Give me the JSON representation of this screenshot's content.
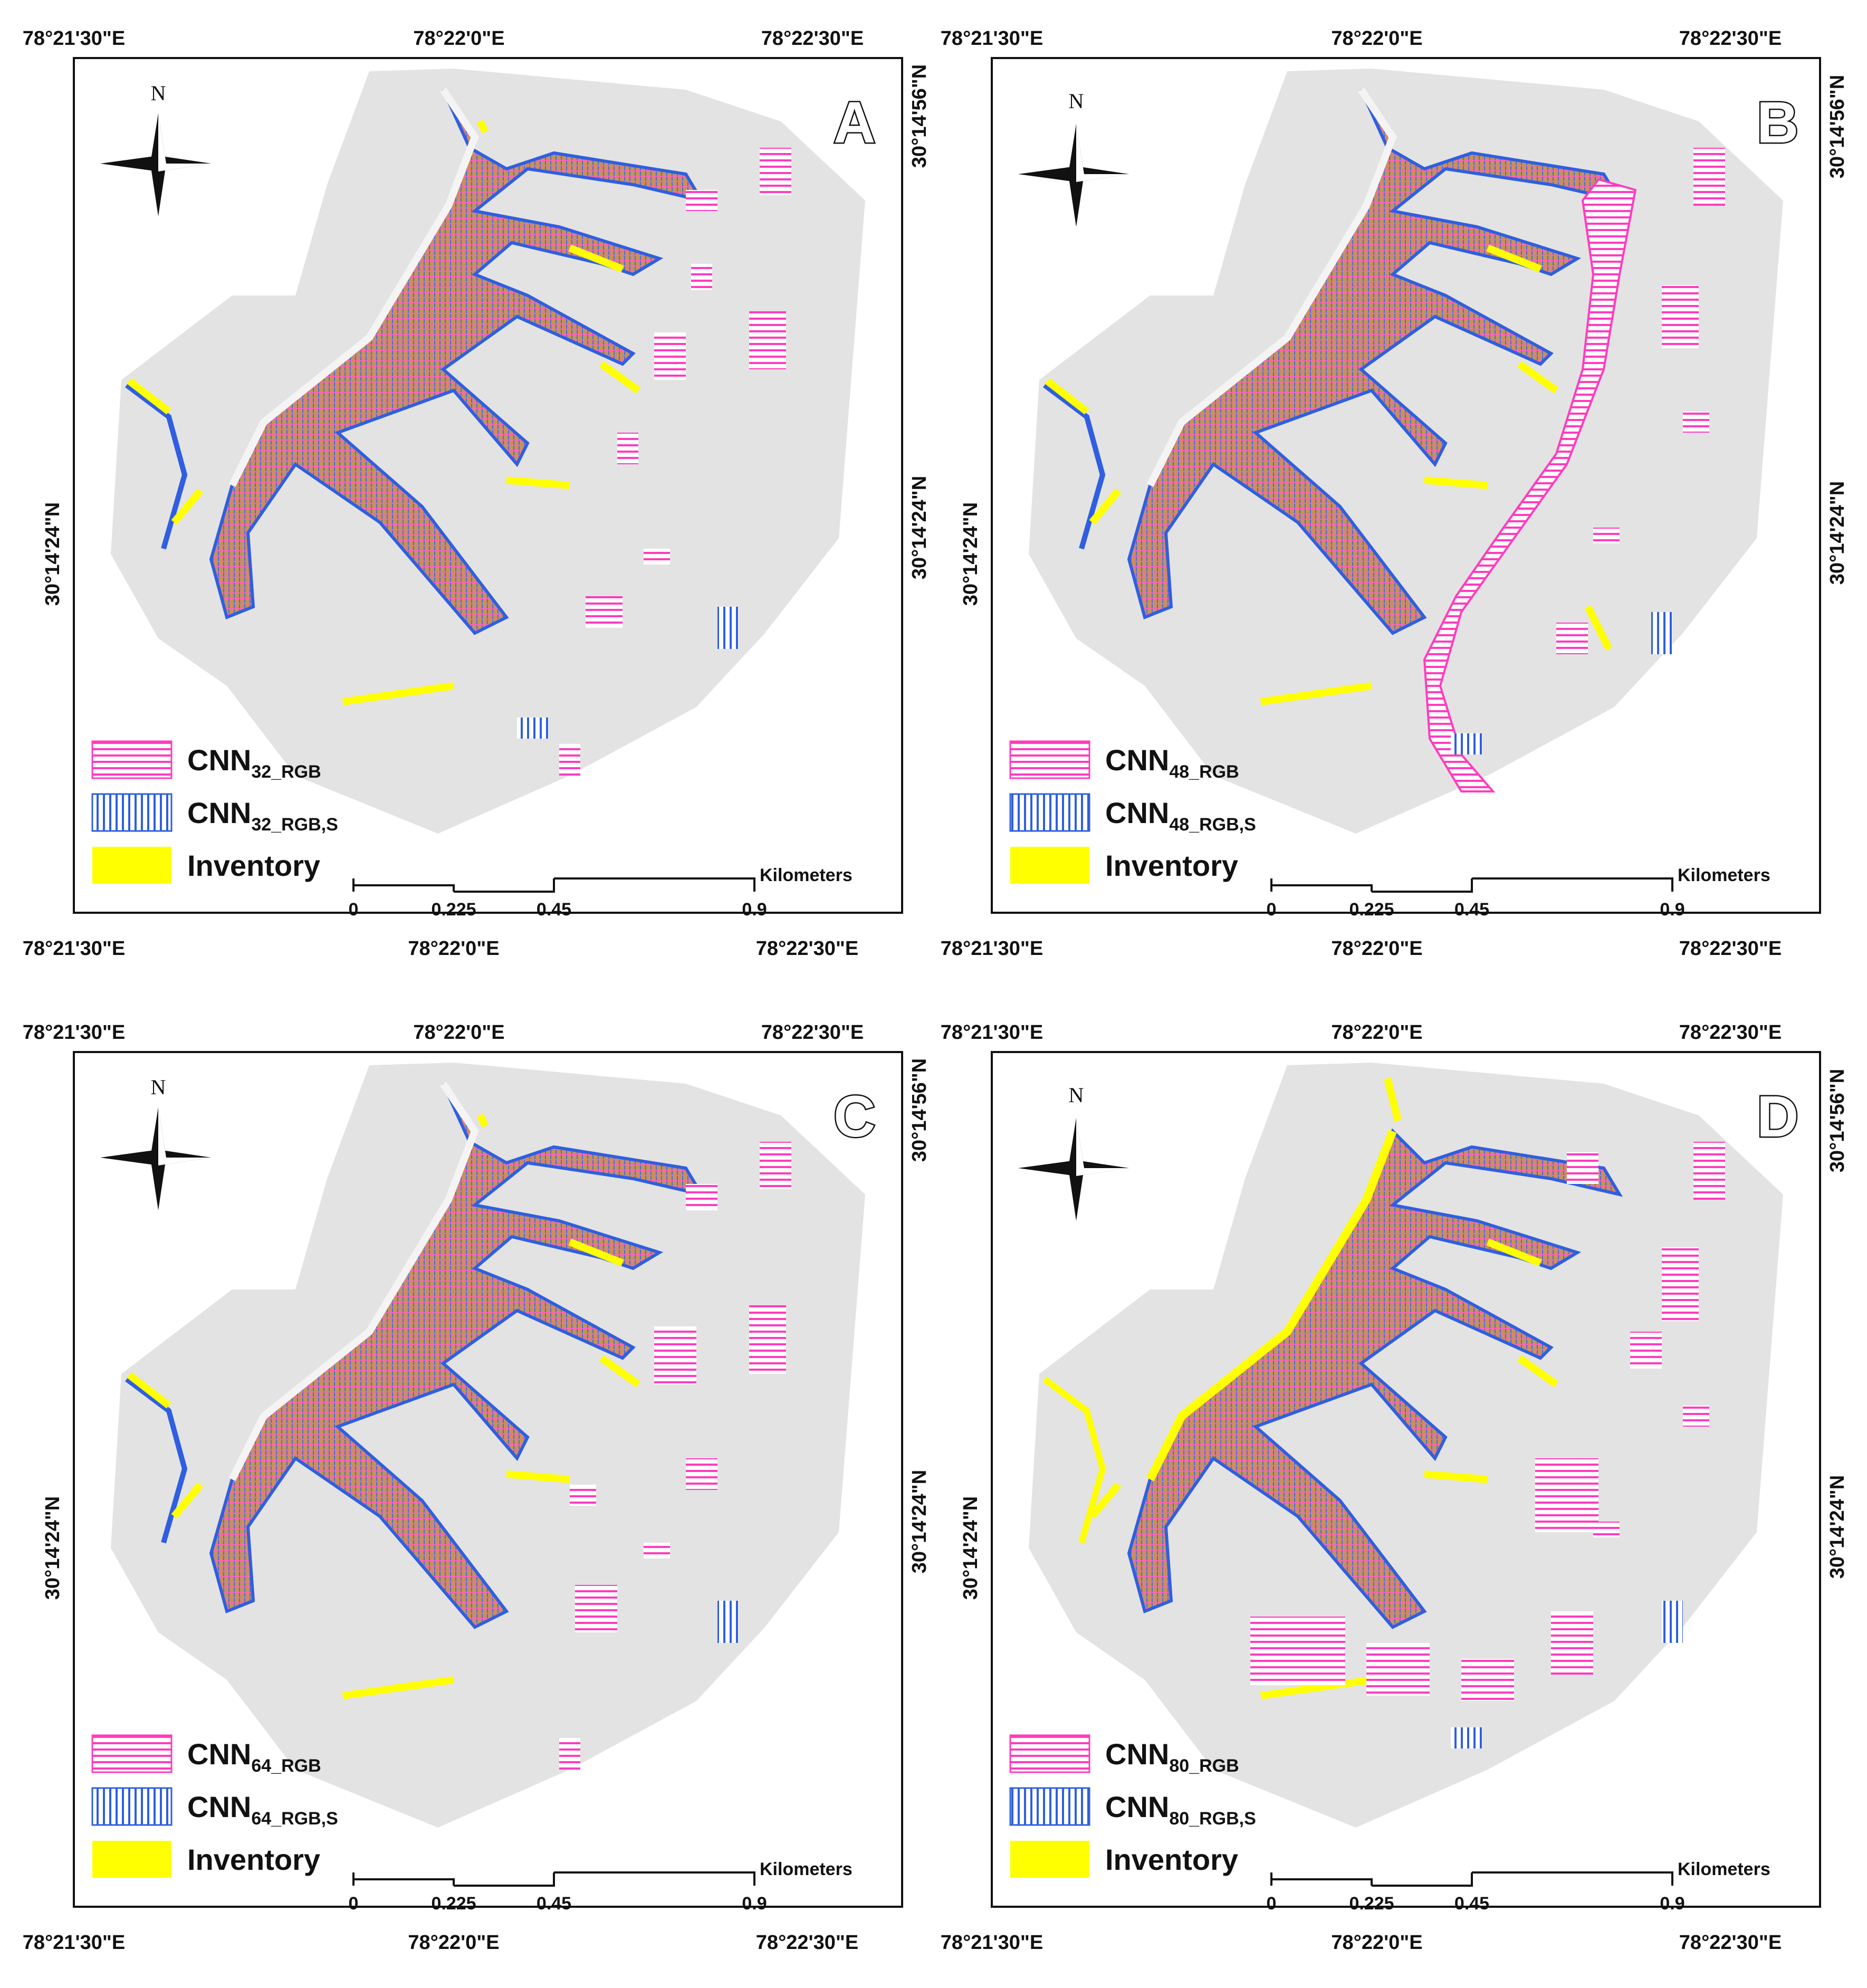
{
  "coordinates": {
    "lon_left": "78°21'30\"E",
    "lon_mid": "78°22'0\"E",
    "lon_right": "78°22'30\"E",
    "lat_top": "30°14'56\"N",
    "lat_mid": "30°14'24\"N"
  },
  "north_label": "N",
  "scale_bar": {
    "unit": "Kilometers",
    "ticks": [
      "0",
      "0.225",
      "0.45",
      "0.9"
    ]
  },
  "legend_inventory": "Inventory",
  "legend_subs": {
    "rgb": "_RGB",
    "rgbs": "_RGB,S"
  },
  "colors": {
    "study_area": "#e3e3e3",
    "cnn_rgb": "#ff3cbe",
    "cnn_rgbs": "#2f5fe0",
    "inventory": "#ffff00",
    "overlap": "#c8905a"
  },
  "panels": [
    {
      "letter": "A",
      "model": "CNN",
      "number": "32"
    },
    {
      "letter": "B",
      "model": "CNN",
      "number": "48"
    },
    {
      "letter": "C",
      "model": "CNN",
      "number": "64"
    },
    {
      "letter": "D",
      "model": "CNN",
      "number": "80"
    }
  ]
}
